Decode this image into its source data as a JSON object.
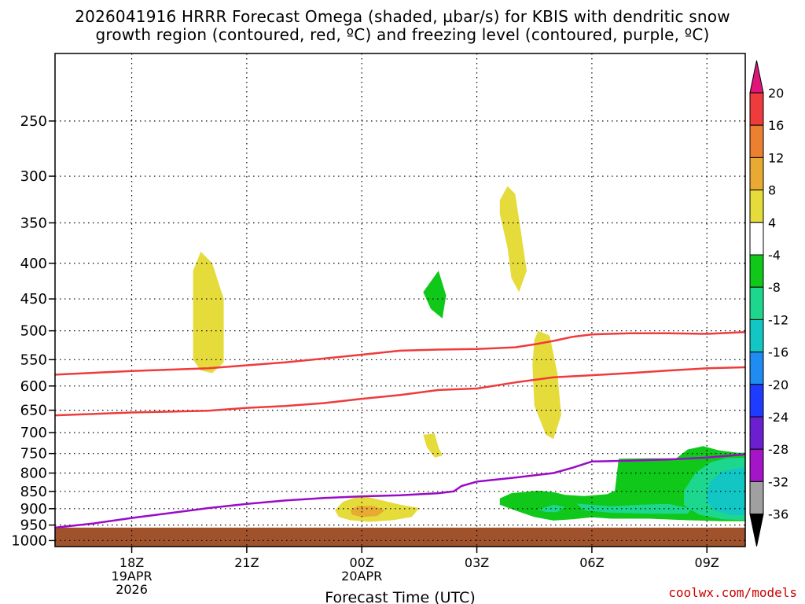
{
  "chart_data": {
    "type": "heatmap",
    "title_lines": [
      "2026041916 HRRR Forecast Omega (shaded, µbar/s) for KBIS with dendritic snow",
      "growth region (contoured, red, ºC) and freezing level (contoured, purple, ºC)"
    ],
    "xlabel": "Forecast Time (UTC)",
    "ylabel": "",
    "x_hours_range": [
      16,
      34
    ],
    "x_ticks": [
      {
        "hour": 18,
        "label": "18Z",
        "date": "19APR",
        "year": "2026"
      },
      {
        "hour": 21,
        "label": "21Z"
      },
      {
        "hour": 24,
        "label": "00Z",
        "date": "20APR"
      },
      {
        "hour": 27,
        "label": "03Z"
      },
      {
        "hour": 30,
        "label": "06Z"
      },
      {
        "hour": 33,
        "label": "09Z"
      }
    ],
    "y_ticks_hpa": [
      250,
      300,
      350,
      400,
      450,
      500,
      550,
      600,
      650,
      700,
      750,
      800,
      850,
      900,
      950,
      1000
    ],
    "y_scale": "log-pressure",
    "y_range_hpa": [
      200,
      1020
    ],
    "grid": true,
    "colorbar": {
      "ticks": [
        20,
        16,
        12,
        8,
        4,
        -4,
        -8,
        -12,
        -16,
        -20,
        -24,
        -28,
        -32,
        -36
      ],
      "bins": [
        {
          "range": "above 20",
          "color": "#e0157a"
        },
        {
          "range": "16 to 20",
          "color": "#ef3b3b"
        },
        {
          "range": "12 to 16",
          "color": "#ec8031"
        },
        {
          "range": "8 to 12",
          "color": "#e9aa33"
        },
        {
          "range": "4 to 8",
          "color": "#e5db3a"
        },
        {
          "range": "-4 to 4",
          "color": "#ffffff"
        },
        {
          "range": "-8 to -4",
          "color": "#0fc819"
        },
        {
          "range": "-12 to -8",
          "color": "#1ed78e"
        },
        {
          "range": "-16 to -12",
          "color": "#12c6c3"
        },
        {
          "range": "-20 to -16",
          "color": "#1e8cf0"
        },
        {
          "range": "-24 to -20",
          "color": "#1e3cff"
        },
        {
          "range": "-28 to -24",
          "color": "#6b1fd1"
        },
        {
          "range": "-32 to -28",
          "color": "#a515c8"
        },
        {
          "range": "-36 to -32",
          "color": "#a0a0a0"
        },
        {
          "range": "below -36",
          "color": "#000000"
        }
      ]
    },
    "series": [
      {
        "color": "#ef3b3b",
        "points": [
          [
            16,
            578
          ],
          [
            18,
            571
          ],
          [
            20,
            566
          ],
          [
            22,
            555
          ],
          [
            24,
            541
          ],
          [
            25,
            534
          ],
          [
            26,
            532
          ],
          [
            27,
            531
          ],
          [
            28,
            528
          ],
          [
            28.5,
            523
          ],
          [
            29,
            517
          ],
          [
            29.5,
            510
          ],
          [
            30,
            506
          ],
          [
            31,
            504
          ],
          [
            32,
            504
          ],
          [
            33,
            505
          ],
          [
            34,
            502
          ]
        ]
      },
      {
        "color": "#ef3b3b",
        "points": [
          [
            16,
            661
          ],
          [
            18,
            655
          ],
          [
            20,
            651
          ],
          [
            21,
            645
          ],
          [
            22,
            641
          ],
          [
            23,
            635
          ],
          [
            24,
            626
          ],
          [
            25,
            618
          ],
          [
            26,
            608
          ],
          [
            27,
            605
          ],
          [
            28,
            593
          ],
          [
            29,
            583
          ],
          [
            30,
            579
          ],
          [
            31,
            575
          ],
          [
            32,
            570
          ],
          [
            33,
            566
          ],
          [
            34,
            564
          ]
        ]
      },
      {
        "color": "#9a0bc8",
        "points": [
          [
            16,
            958
          ],
          [
            17,
            945
          ],
          [
            18,
            928
          ],
          [
            19,
            913
          ],
          [
            20,
            898
          ],
          [
            21,
            886
          ],
          [
            22,
            876
          ],
          [
            23,
            869
          ],
          [
            24,
            864
          ],
          [
            25,
            861
          ],
          [
            26,
            855
          ],
          [
            26.4,
            850
          ],
          [
            26.6,
            835
          ],
          [
            27,
            823
          ],
          [
            28,
            812
          ],
          [
            29,
            800
          ],
          [
            29.5,
            786
          ],
          [
            30,
            770
          ],
          [
            31,
            768
          ],
          [
            32,
            765
          ],
          [
            33,
            760
          ],
          [
            34,
            752
          ]
        ]
      }
    ],
    "shaded_regions": [
      {
        "bin": "4 to 8",
        "points": [
          [
            19.6,
            550
          ],
          [
            19.6,
            410
          ],
          [
            19.8,
            385
          ],
          [
            20.1,
            400
          ],
          [
            20.4,
            450
          ],
          [
            20.4,
            555
          ],
          [
            20.1,
            575
          ],
          [
            19.8,
            570
          ]
        ]
      },
      {
        "bin": "4 to 8",
        "points": [
          [
            27.6,
            325
          ],
          [
            27.8,
            310
          ],
          [
            28,
            318
          ],
          [
            28.15,
            360
          ],
          [
            28.3,
            410
          ],
          [
            28.1,
            440
          ],
          [
            27.9,
            420
          ],
          [
            27.8,
            380
          ],
          [
            27.6,
            340
          ]
        ]
      },
      {
        "bin": "4 to 8",
        "points": [
          [
            28.5,
            515
          ],
          [
            28.6,
            500
          ],
          [
            28.9,
            508
          ],
          [
            29.1,
            575
          ],
          [
            29.2,
            660
          ],
          [
            29,
            715
          ],
          [
            28.8,
            705
          ],
          [
            28.5,
            640
          ],
          [
            28.45,
            560
          ]
        ]
      },
      {
        "bin": "4 to 8",
        "points": [
          [
            25.6,
            705
          ],
          [
            25.9,
            702
          ],
          [
            26.0,
            735
          ],
          [
            26.1,
            755
          ],
          [
            25.9,
            760
          ],
          [
            25.7,
            735
          ]
        ]
      },
      {
        "bin": "4 to 8",
        "points": [
          [
            23.3,
            905
          ],
          [
            23.5,
            880
          ],
          [
            23.8,
            868
          ],
          [
            24,
            862
          ],
          [
            24.4,
            872
          ],
          [
            25,
            888
          ],
          [
            25.5,
            898
          ],
          [
            25.3,
            925
          ],
          [
            24.8,
            935
          ],
          [
            24.2,
            940
          ],
          [
            23.7,
            935
          ],
          [
            23.4,
            925
          ]
        ]
      },
      {
        "bin": "8 to 12",
        "points": [
          [
            23.7,
            905
          ],
          [
            23.9,
            892
          ],
          [
            24.3,
            892
          ],
          [
            24.6,
            905
          ],
          [
            24.4,
            922
          ],
          [
            24,
            925
          ],
          [
            23.75,
            918
          ]
        ]
      },
      {
        "bin": "-8 to -4",
        "points": [
          [
            25.6,
            440
          ],
          [
            26.0,
            410
          ],
          [
            26.2,
            445
          ],
          [
            26.1,
            480
          ],
          [
            25.8,
            465
          ]
        ]
      },
      {
        "bin": "-8 to -4",
        "points": [
          [
            27.6,
            870
          ],
          [
            27.9,
            855
          ],
          [
            28.2,
            852
          ],
          [
            28.6,
            848
          ],
          [
            29.0,
            852
          ],
          [
            29.3,
            860
          ],
          [
            29.8,
            863
          ],
          [
            30.4,
            858
          ],
          [
            30.6,
            848
          ],
          [
            30.7,
            763
          ],
          [
            31.5,
            762
          ],
          [
            32.2,
            762
          ],
          [
            32.5,
            740
          ],
          [
            32.9,
            732
          ],
          [
            33.3,
            742
          ],
          [
            33.8,
            748
          ],
          [
            34,
            748
          ],
          [
            34,
            938
          ],
          [
            33.4,
            938
          ],
          [
            32.5,
            935
          ],
          [
            31.5,
            930
          ],
          [
            30.5,
            930
          ],
          [
            30,
            926
          ],
          [
            29.5,
            932
          ],
          [
            29,
            936
          ],
          [
            28.5,
            925
          ],
          [
            28,
            905
          ],
          [
            27.6,
            888
          ]
        ]
      },
      {
        "bin": "-12 to -8",
        "points": [
          [
            32.4,
            848
          ],
          [
            32.7,
            800
          ],
          [
            33.1,
            772
          ],
          [
            33.5,
            762
          ],
          [
            34,
            760
          ],
          [
            34,
            935
          ],
          [
            33.4,
            932
          ],
          [
            32.8,
            918
          ],
          [
            32.4,
            890
          ]
        ]
      },
      {
        "bin": "-12 to -8",
        "points": [
          [
            29.6,
            885
          ],
          [
            30.5,
            893
          ],
          [
            31.3,
            888
          ],
          [
            32,
            886
          ],
          [
            32.6,
            900
          ],
          [
            32.5,
            915
          ],
          [
            31.5,
            915
          ],
          [
            30.5,
            912
          ],
          [
            29.8,
            905
          ]
        ]
      },
      {
        "bin": "-12 to -8",
        "points": [
          [
            28.6,
            902
          ],
          [
            29,
            888
          ],
          [
            29.3,
            895
          ],
          [
            29.1,
            910
          ],
          [
            28.8,
            910
          ]
        ]
      },
      {
        "bin": "-16 to -12",
        "points": [
          [
            33.0,
            855
          ],
          [
            33.1,
            822
          ],
          [
            33.4,
            795
          ],
          [
            33.9,
            785
          ],
          [
            34,
            785
          ],
          [
            34,
            920
          ],
          [
            33.6,
            918
          ],
          [
            33.2,
            905
          ],
          [
            33.0,
            880
          ]
        ]
      }
    ],
    "surface": {
      "color": "#a0522d",
      "pressure_hpa": 958
    }
  },
  "credit": "coolwx.com/models"
}
